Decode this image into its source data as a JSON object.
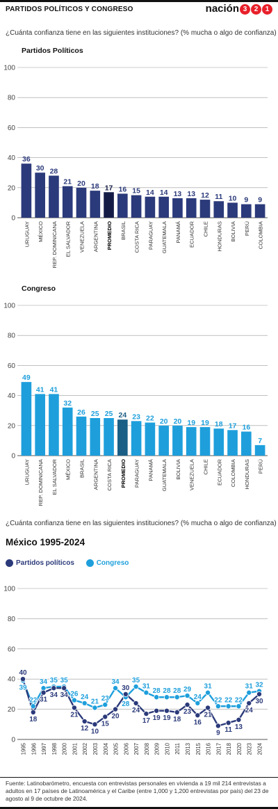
{
  "header": {
    "title": "PARTIDOS POLÍTICOS Y CONGRESO",
    "brand_text": "nación",
    "brand_numbers": [
      "3",
      "2",
      "1"
    ]
  },
  "question_1": "¿Cuánta confianza tiene en las siguientes instituciones? (% mucha o algo de confianza)",
  "question_2": "¿Cuánta confianza tiene en las siguientes instituciones? (% mucha o algo de confianza)",
  "colors": {
    "partidos": "#2b3a7a",
    "partidos_highlight": "#141c46",
    "congreso": "#1e9fdc",
    "congreso_highlight": "#1b5f86"
  },
  "legend": {
    "partidos": "Partidos políticos",
    "congreso": "Congreso"
  },
  "chart_data": [
    {
      "type": "bar",
      "title": "Partidos Políticos",
      "categories": [
        "URUGUAY",
        "MÉXICO",
        "REP. DOMINICANA",
        "EL SALVADOR",
        "VENEZUELA",
        "ARGENTINA",
        "PROMEDIO",
        "BRASIL",
        "COSTA RICA",
        "PARAGUAY",
        "GUATEMALA",
        "PANAMÁ",
        "ECUADOR",
        "CHILE",
        "HONDURAS",
        "BOLIVIA",
        "PERÚ",
        "COLOMBIA"
      ],
      "values": [
        36,
        30,
        28,
        21,
        20,
        18,
        17,
        16,
        15,
        14,
        14,
        13,
        13,
        12,
        11,
        10,
        9,
        9
      ],
      "highlight": "PROMEDIO",
      "ylim": [
        0,
        100
      ],
      "yticks": [
        0,
        20,
        40,
        60,
        80,
        100
      ]
    },
    {
      "type": "bar",
      "title": "Congreso",
      "categories": [
        "URUGUAY",
        "REP. DOMINICANA",
        "EL SALVADOR",
        "MÉXICO",
        "BRASIL",
        "ARGENTINA",
        "COSTA RICA",
        "PROMEDIO",
        "PARAGUAY",
        "PANAMÁ",
        "GUATEMALA",
        "BOLIVIA",
        "VENEZUELA",
        "CHILE",
        "ECUADOR",
        "COLOMBIA",
        "HONDURAS",
        "PERÚ"
      ],
      "values": [
        49,
        41,
        41,
        32,
        26,
        25,
        25,
        24,
        23,
        22,
        20,
        20,
        19,
        19,
        18,
        17,
        16,
        7
      ],
      "highlight": "PROMEDIO",
      "ylim": [
        0,
        100
      ],
      "yticks": [
        0,
        20,
        40,
        60,
        80,
        100
      ]
    },
    {
      "type": "line",
      "title": "México 1995-2024",
      "x": [
        "1995",
        "1996",
        "1997",
        "1998",
        "2000",
        "2001",
        "2002",
        "2003",
        "2004",
        "2005",
        "2006",
        "2007",
        "2008",
        "2009",
        "2010",
        "2011",
        "2013",
        "2015",
        "2016",
        "2017",
        "2018",
        "2020",
        "2023",
        "2024"
      ],
      "series": [
        {
          "name": "Partidos políticos",
          "values": [
            40,
            18,
            31,
            34,
            34,
            21,
            12,
            10,
            15,
            20,
            30,
            24,
            17,
            19,
            19,
            18,
            23,
            16,
            21,
            9,
            11,
            13,
            24,
            30
          ]
        },
        {
          "name": "Congreso",
          "values": [
            39,
            22,
            34,
            35,
            35,
            26,
            24,
            21,
            23,
            34,
            28,
            35,
            31,
            28,
            28,
            28,
            29,
            24,
            31,
            22,
            22,
            22,
            31,
            32
          ]
        }
      ],
      "ylim": [
        0,
        100
      ],
      "yticks": [
        0,
        20,
        40,
        60,
        80,
        100
      ],
      "legend": "top-left"
    }
  ],
  "source": "Fuente: Latinobarómetro, encuesta con entrevistas personales en vivienda a 19 mil 214 entrevistas a adultos en 17 países de Latinoamérica y el Caribe (entre 1,000 y 1,200 entrevistas por país) del 23 de agosto al 9 de octubre de 2024."
}
